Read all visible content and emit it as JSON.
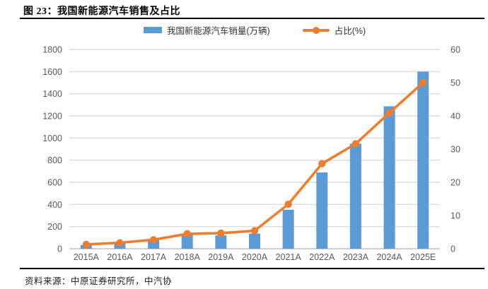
{
  "figure": {
    "title": "图 23：我国新能源汽车销售及占比",
    "source": "资料来源：中原证券研究所，中汽协"
  },
  "chart_data": {
    "type": "combo-bar-line",
    "title": "我国新能源汽车销售及占比",
    "categories": [
      "2015A",
      "2016A",
      "2017A",
      "2018A",
      "2019A",
      "2020A",
      "2021A",
      "2022A",
      "2023A",
      "2024A",
      "2025E"
    ],
    "series": [
      {
        "name": "我国新能源汽车销量(万辆)",
        "type": "bar",
        "axis": "left",
        "color": "#5B9BD5",
        "values": [
          33.1,
          50.7,
          77.7,
          125.6,
          120.6,
          136.7,
          352.1,
          688.7,
          949.5,
          1286.6,
          1600
        ]
      },
      {
        "name": "占比(%)",
        "type": "line",
        "axis": "right",
        "color": "#ED7D31",
        "values": [
          1.3,
          1.8,
          2.7,
          4.5,
          4.7,
          5.4,
          13.4,
          25.6,
          31.6,
          40.9,
          50.0
        ]
      }
    ],
    "left_axis": {
      "min": 0,
      "max": 1800,
      "step": 200,
      "ticks": [
        "0",
        "200",
        "400",
        "600",
        "800",
        "1000",
        "1200",
        "1400",
        "1600",
        "1800"
      ]
    },
    "right_axis": {
      "min": 0,
      "max": 60,
      "step": 10,
      "ticks": [
        "0",
        "10",
        "20",
        "30",
        "40",
        "50",
        "60"
      ]
    },
    "grid": true,
    "legend_position": "top",
    "colors": {
      "bar": "#5B9BD5",
      "line": "#ED7D31",
      "gridline": "#DCDCDC",
      "baseline": "#BFBFBF",
      "axis_text": "#595959"
    }
  }
}
